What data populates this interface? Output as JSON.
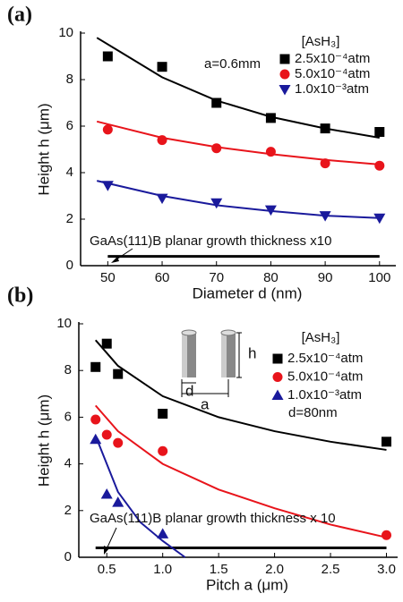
{
  "chart_data": [
    {
      "type": "scatter",
      "panel_label": "(a)",
      "x_label": "Diameter  d (nm)",
      "y_label": "Height  h (μm)",
      "xlim": [
        45,
        103
      ],
      "ylim": [
        0,
        10
      ],
      "xticks": [
        50,
        60,
        70,
        80,
        90,
        100
      ],
      "yticks": [
        0,
        2,
        4,
        6,
        8,
        10
      ],
      "legend_title": "[AsH₃]",
      "annotations": [
        "a=0.6mm",
        "GaAs(111)B planar growth thickness x10"
      ],
      "x": [
        50,
        60,
        70,
        80,
        90,
        100
      ],
      "series": [
        {
          "name": "2.5x10⁻⁴atm",
          "color": "#000000",
          "marker": "square",
          "values": [
            9.0,
            8.55,
            7.0,
            6.35,
            5.9,
            5.75
          ]
        },
        {
          "name": "5.0x10⁻⁴atm",
          "color": "#e8141b",
          "marker": "circle",
          "values": [
            5.85,
            5.4,
            5.05,
            4.9,
            4.4,
            4.3
          ]
        },
        {
          "name": "1.0x10⁻³atm",
          "color": "#1a1a9c",
          "marker": "triangle-down",
          "values": [
            3.45,
            2.9,
            2.7,
            2.4,
            2.15,
            2.05
          ]
        }
      ],
      "fit_lines": [
        {
          "color": "#000000",
          "x": [
            48,
            60,
            70,
            80,
            90,
            100
          ],
          "values": [
            9.8,
            8.1,
            7.1,
            6.4,
            5.9,
            5.5
          ]
        },
        {
          "color": "#e8141b",
          "x": [
            48,
            60,
            70,
            80,
            90,
            100
          ],
          "values": [
            6.2,
            5.5,
            5.1,
            4.8,
            4.55,
            4.35
          ]
        },
        {
          "color": "#1a1a9c",
          "x": [
            48,
            60,
            70,
            80,
            90,
            100
          ],
          "values": [
            3.65,
            3.0,
            2.6,
            2.35,
            2.15,
            2.05
          ]
        }
      ],
      "planar_line": {
        "x": [
          50,
          100
        ],
        "values": [
          0.4,
          0.4
        ]
      }
    },
    {
      "type": "scatter",
      "panel_label": "(b)",
      "x_label": "Pitch  a (μm)",
      "y_label": "Height  h (μm)",
      "xlim": [
        0.25,
        3.1
      ],
      "ylim": [
        0,
        10
      ],
      "xticks": [
        0.5,
        {
          "value": 1,
          "label": "1.0"
        },
        1.5,
        {
          "value": 2,
          "label": "2.0"
        },
        2.5,
        {
          "value": 3,
          "label": "3.0"
        }
      ],
      "yticks": [
        0,
        2,
        4,
        6,
        8,
        10
      ],
      "legend_title": "[AsH₃]",
      "annotations": [
        "d=80nm",
        "GaAs(111)B planar growth thickness x 10"
      ],
      "inset_labels": [
        "h",
        "d",
        "a"
      ],
      "x": [
        0.4,
        0.5,
        0.6,
        1.0,
        3.0
      ],
      "series": [
        {
          "name": "2.5x10⁻⁴atm",
          "color": "#000000",
          "marker": "square",
          "values": [
            8.15,
            9.15,
            7.85,
            6.15,
            4.95
          ]
        },
        {
          "name": "5.0x10⁻⁴atm",
          "color": "#e8141b",
          "marker": "circle",
          "values": [
            5.9,
            5.25,
            4.9,
            4.55,
            0.95
          ]
        },
        {
          "name": "1.0x10⁻³atm",
          "color": "#1a1a9c",
          "marker": "triangle-up",
          "values": [
            5.05,
            2.7,
            2.35,
            1.0,
            null
          ]
        }
      ],
      "fit_lines": [
        {
          "color": "#000000",
          "x": [
            0.4,
            0.6,
            1.0,
            1.5,
            2.0,
            2.5,
            3.0
          ],
          "values": [
            9.3,
            8.2,
            6.9,
            6.0,
            5.4,
            4.95,
            4.6
          ]
        },
        {
          "color": "#e8141b",
          "x": [
            0.4,
            0.6,
            1.0,
            1.5,
            2.0,
            2.5,
            3.0
          ],
          "values": [
            6.5,
            5.4,
            4.0,
            2.9,
            2.1,
            1.4,
            0.85
          ]
        },
        {
          "color": "#1a1a9c",
          "x": [
            0.4,
            0.6,
            0.8,
            1.0,
            1.2
          ],
          "values": [
            5.2,
            2.8,
            1.5,
            0.7,
            0.0
          ]
        }
      ],
      "planar_line": {
        "x": [
          0.4,
          3.0
        ],
        "values": [
          0.4,
          0.4
        ]
      }
    }
  ]
}
